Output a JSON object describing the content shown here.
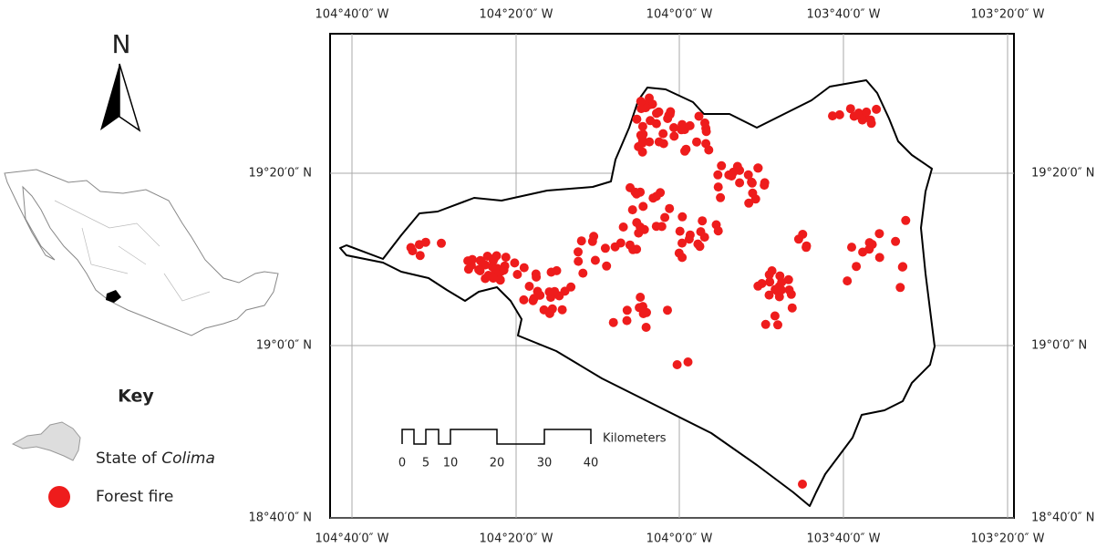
{
  "north_arrow": {
    "label": "N"
  },
  "graticule": {
    "longitude_labels": [
      "104°40′0″ W",
      "104°20′0″ W",
      "104°0′0″ W",
      "103°40′0″ W",
      "103°20′0″ W"
    ],
    "latitude_labels": [
      "19°20′0″ N",
      "19°0′0″ N",
      "18°40′0″ N"
    ]
  },
  "key": {
    "title": "Key",
    "items": [
      {
        "prefix": "State of",
        "emphasis": "Colima"
      },
      {
        "label": "Forest fire"
      }
    ]
  },
  "scale_bar": {
    "unit": "Kilometers",
    "labels": [
      "0",
      "5",
      "10",
      "20",
      "30",
      "40"
    ]
  }
}
